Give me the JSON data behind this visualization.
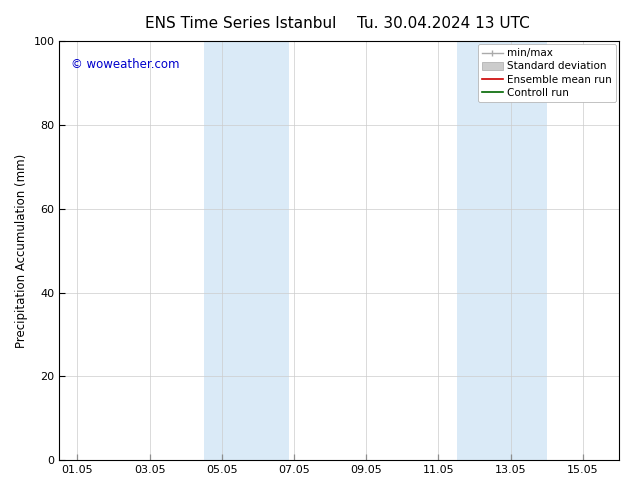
{
  "title_left": "ENS Time Series Istanbul",
  "title_right": "Tu. 30.04.2024 13 UTC",
  "ylabel": "Precipitation Accumulation (mm)",
  "ylim": [
    0,
    100
  ],
  "yticks": [
    0,
    20,
    40,
    60,
    80,
    100
  ],
  "xtick_labels": [
    "01.05",
    "03.05",
    "05.05",
    "07.05",
    "09.05",
    "11.05",
    "13.05",
    "15.05"
  ],
  "xtick_values": [
    0,
    2,
    4,
    6,
    8,
    10,
    12,
    14
  ],
  "xlim": [
    -0.5,
    15.0
  ],
  "shaded_bands": [
    {
      "x_start": 3.5,
      "x_end": 4.75,
      "color": "#daeaf7"
    },
    {
      "x_start": 4.75,
      "x_end": 5.85,
      "color": "#daeaf7"
    },
    {
      "x_start": 10.5,
      "x_end": 11.75,
      "color": "#daeaf7"
    },
    {
      "x_start": 11.75,
      "x_end": 13.0,
      "color": "#daeaf7"
    }
  ],
  "watermark_text": "© woweather.com",
  "watermark_color": "#0000cc",
  "background_color": "#ffffff",
  "plot_bg_color": "#ffffff",
  "legend_items": [
    {
      "label": "min/max",
      "color": "#aaaaaa",
      "lw": 1.0,
      "type": "minmax"
    },
    {
      "label": "Standard deviation",
      "color": "#cccccc",
      "lw": 5,
      "type": "band"
    },
    {
      "label": "Ensemble mean run",
      "color": "#cc0000",
      "lw": 1.2,
      "type": "line"
    },
    {
      "label": "Controll run",
      "color": "#006600",
      "lw": 1.2,
      "type": "line"
    }
  ],
  "title_fontsize": 11,
  "ylabel_fontsize": 8.5,
  "tick_fontsize": 8,
  "legend_fontsize": 7.5,
  "watermark_fontsize": 8.5
}
